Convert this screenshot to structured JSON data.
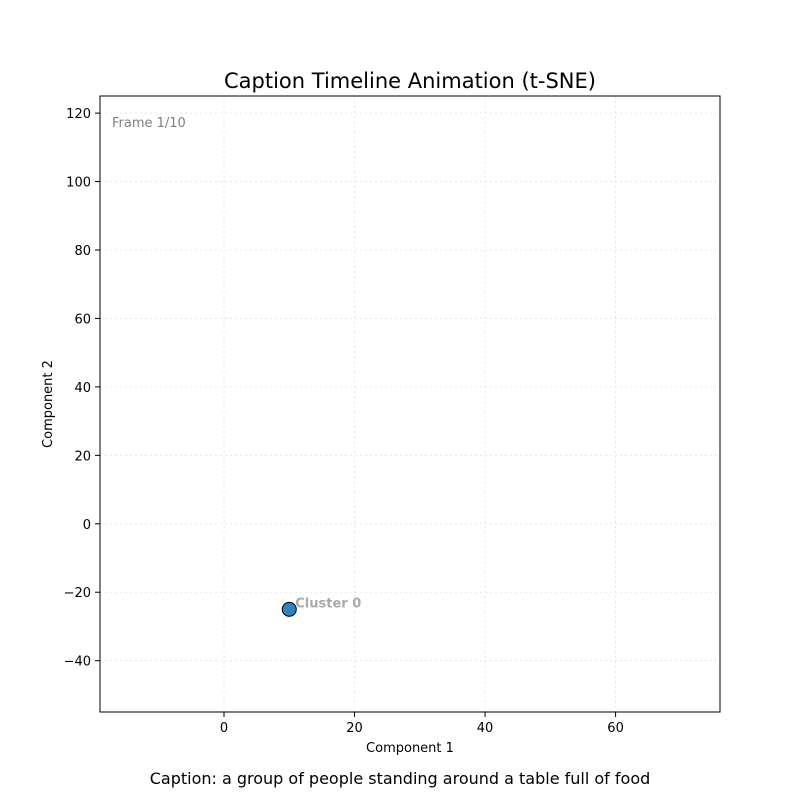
{
  "chart_data": {
    "type": "scatter",
    "title": "Caption Timeline Animation (t-SNE)",
    "xlabel": "Component 1",
    "ylabel": "Component 2",
    "xlim": [
      -19,
      76
    ],
    "ylim": [
      -55,
      125
    ],
    "xticks": [
      0,
      20,
      40,
      60
    ],
    "yticks": [
      -40,
      -20,
      0,
      20,
      40,
      60,
      80,
      100,
      120
    ],
    "xtick_labels": [
      "0",
      "20",
      "40",
      "60"
    ],
    "ytick_labels": [
      "−40",
      "−20",
      "0",
      "20",
      "40",
      "60",
      "80",
      "100",
      "120"
    ],
    "grid": true,
    "frame_label": "Frame 1/10",
    "points": [
      {
        "x": 10,
        "y": -25,
        "label": "Cluster 0",
        "color": "#3182bd"
      }
    ],
    "caption": "Caption: a group of people standing around a table full of food",
    "colors": {
      "point_edge": "#000000",
      "annotation": "#aaaaaa",
      "frame_label": "#808080",
      "grid": "#e0e0e0"
    }
  }
}
